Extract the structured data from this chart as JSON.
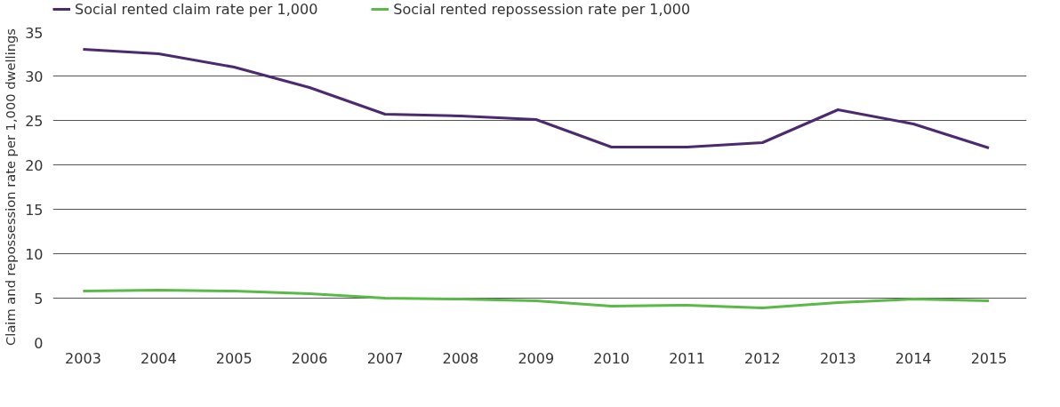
{
  "chart_data": {
    "type": "line",
    "ylabel": "Claim and repossession rate per 1,000 dwellings",
    "categories": [
      "2003",
      "2004",
      "2005",
      "2006",
      "2007",
      "2008",
      "2009",
      "2010",
      "2011",
      "2012",
      "2013",
      "2014",
      "2015"
    ],
    "series": [
      {
        "name": "Social rented claim rate per 1,000",
        "color": "#4b2a6e",
        "values": [
          33.0,
          32.5,
          31.0,
          28.7,
          25.7,
          25.5,
          25.1,
          22.0,
          22.0,
          22.5,
          26.2,
          24.6,
          21.9
        ]
      },
      {
        "name": "Social rented repossession rate per 1,000",
        "color": "#5ab947",
        "values": [
          5.8,
          5.9,
          5.8,
          5.5,
          5.0,
          4.9,
          4.7,
          4.1,
          4.2,
          3.9,
          4.5,
          4.9,
          4.7
        ]
      }
    ],
    "ylim": [
      0,
      35
    ],
    "yticks": [
      0,
      5,
      10,
      15,
      20,
      25,
      30,
      35
    ],
    "grid": "y",
    "legend": "top left",
    "marker": "none",
    "line_style": "solid"
  }
}
